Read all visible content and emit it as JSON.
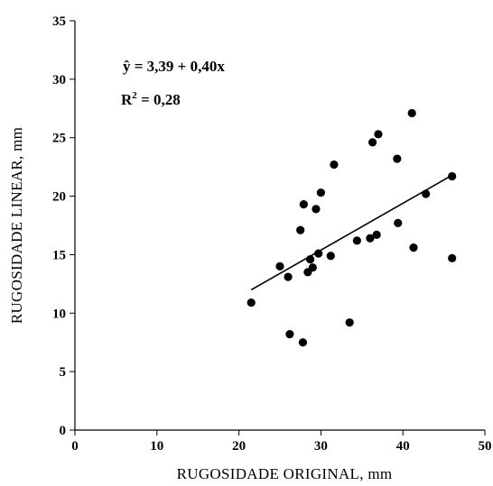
{
  "chart_data": {
    "type": "scatter",
    "title": "",
    "xlabel": "RUGOSIDADE ORIGINAL, mm",
    "ylabel": "RUGOSIDADE LINEAR, mm",
    "xlim": [
      0,
      50
    ],
    "ylim": [
      0,
      35
    ],
    "xticks": [
      "0",
      "10",
      "20",
      "30",
      "40",
      "50"
    ],
    "yticks": [
      "0",
      "5",
      "10",
      "15",
      "20",
      "25",
      "30",
      "35"
    ],
    "grid": false,
    "annotations": {
      "equation": "ŷ  = 3,39 + 0,40x",
      "r2_prefix": "R",
      "r2_sup": "2",
      "r2_value": " = 0,28"
    },
    "trendline": {
      "intercept": 3.39,
      "slope": 0.4,
      "x_range": [
        21.5,
        46
      ]
    },
    "points": [
      {
        "x": 21.5,
        "y": 10.9
      },
      {
        "x": 25.0,
        "y": 14.0
      },
      {
        "x": 26.0,
        "y": 13.1
      },
      {
        "x": 26.2,
        "y": 8.2
      },
      {
        "x": 27.5,
        "y": 17.1
      },
      {
        "x": 27.8,
        "y": 7.5
      },
      {
        "x": 27.9,
        "y": 19.3
      },
      {
        "x": 28.4,
        "y": 13.5
      },
      {
        "x": 28.7,
        "y": 14.6
      },
      {
        "x": 29.0,
        "y": 13.9
      },
      {
        "x": 29.4,
        "y": 18.9
      },
      {
        "x": 29.7,
        "y": 15.1
      },
      {
        "x": 30.0,
        "y": 20.3
      },
      {
        "x": 31.2,
        "y": 14.9
      },
      {
        "x": 31.6,
        "y": 22.7
      },
      {
        "x": 33.5,
        "y": 9.2
      },
      {
        "x": 34.4,
        "y": 16.2
      },
      {
        "x": 36.0,
        "y": 16.4
      },
      {
        "x": 36.3,
        "y": 24.6
      },
      {
        "x": 36.8,
        "y": 16.7
      },
      {
        "x": 37.0,
        "y": 25.3
      },
      {
        "x": 39.3,
        "y": 23.2
      },
      {
        "x": 39.4,
        "y": 17.7
      },
      {
        "x": 41.1,
        "y": 27.1
      },
      {
        "x": 41.3,
        "y": 15.6
      },
      {
        "x": 42.8,
        "y": 20.2
      },
      {
        "x": 46.0,
        "y": 21.7
      },
      {
        "x": 46.0,
        "y": 14.7
      }
    ]
  }
}
